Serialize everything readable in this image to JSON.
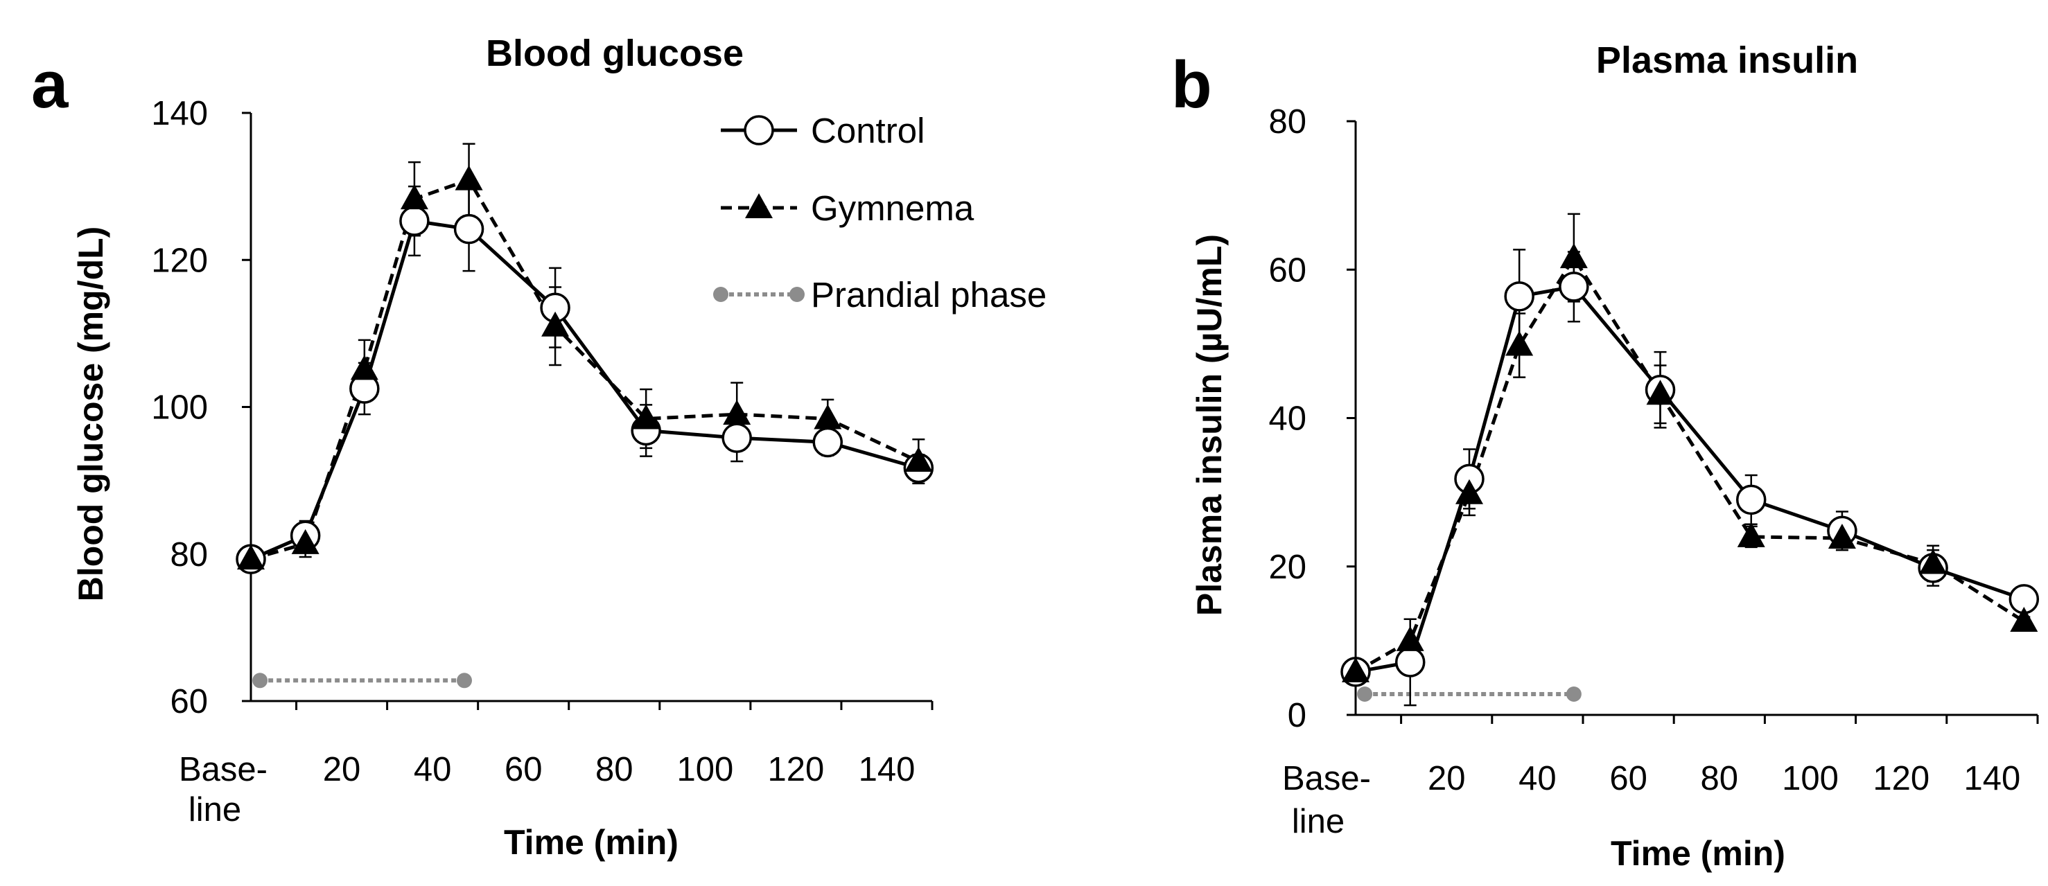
{
  "colors": {
    "control": "#000000",
    "gymnema": "#000000",
    "prandial": "#8c8c8c",
    "background": "#ffffff"
  },
  "legend": {
    "control": "Control",
    "gymnema": "Gymnema",
    "prandial": "Prandial phase"
  },
  "chart_data": [
    {
      "panel": "a",
      "type": "line",
      "title": "Blood glucose",
      "xlabel": "Time (min)",
      "ylabel": "Blood glucose (mg/dL)",
      "ylim": [
        60,
        140
      ],
      "yticks": [
        60,
        80,
        100,
        120,
        140
      ],
      "xlim": [
        0,
        150
      ],
      "xticks": [
        {
          "value": 0,
          "lines": [
            "Base-",
            "line"
          ]
        },
        {
          "value": 20,
          "lines": [
            "20"
          ]
        },
        {
          "value": 40,
          "lines": [
            "40"
          ]
        },
        {
          "value": 60,
          "lines": [
            "60"
          ]
        },
        {
          "value": 80,
          "lines": [
            "80"
          ]
        },
        {
          "value": 100,
          "lines": [
            "100"
          ]
        },
        {
          "value": 120,
          "lines": [
            "120"
          ]
        },
        {
          "value": 140,
          "lines": [
            "140"
          ]
        }
      ],
      "legend_position": "top-right",
      "series": [
        {
          "name": "Control",
          "key": "control",
          "marker": "open-circle",
          "line": "solid",
          "x": [
            0,
            12,
            25,
            36,
            48,
            67,
            87,
            107,
            127,
            147
          ],
          "y": [
            79.3,
            82.5,
            102.5,
            125.3,
            124.2,
            113.5,
            96.8,
            95.8,
            95.2,
            91.7
          ],
          "err": [
            0.7,
            2.0,
            3.5,
            4.7,
            5.7,
            5.4,
            3.5,
            3.2,
            1.8,
            1.8
          ]
        },
        {
          "name": "Gymnema",
          "key": "gymnema",
          "marker": "filled-triangle",
          "line": "dashed",
          "x": [
            0,
            12,
            25,
            36,
            48,
            67,
            87,
            107,
            127,
            147
          ],
          "y": [
            79.3,
            81.4,
            105.1,
            128.3,
            130.9,
            111.0,
            98.4,
            99.0,
            98.4,
            92.6
          ],
          "err": [
            0.7,
            1.8,
            4.0,
            5.0,
            4.9,
            5.3,
            4.0,
            4.3,
            2.6,
            3.0
          ]
        }
      ],
      "prandial_phase": {
        "x": [
          2,
          47
        ],
        "y": 62.8
      }
    },
    {
      "panel": "b",
      "type": "line",
      "title": "Plasma insulin",
      "xlabel": "Time (min)",
      "ylabel": "Plasma insulin (µU/mL)",
      "ylim": [
        0,
        80
      ],
      "yticks": [
        0,
        20,
        40,
        60,
        80
      ],
      "xlim": [
        0,
        150
      ],
      "xticks": [
        {
          "value": 0,
          "lines": [
            "Base-",
            "line"
          ]
        },
        {
          "value": 20,
          "lines": [
            "20"
          ]
        },
        {
          "value": 40,
          "lines": [
            "40"
          ]
        },
        {
          "value": 60,
          "lines": [
            "60"
          ]
        },
        {
          "value": 80,
          "lines": [
            "80"
          ]
        },
        {
          "value": 100,
          "lines": [
            "100"
          ]
        },
        {
          "value": 120,
          "lines": [
            "120"
          ]
        },
        {
          "value": 140,
          "lines": [
            "140"
          ]
        }
      ],
      "series": [
        {
          "name": "Control",
          "key": "control",
          "marker": "open-circle",
          "line": "solid",
          "x": [
            0,
            12,
            25,
            36,
            48,
            67,
            87,
            107,
            127,
            147
          ],
          "y": [
            5.8,
            7.1,
            31.8,
            56.4,
            57.7,
            43.8,
            29.0,
            24.8,
            19.8,
            15.6
          ],
          "err": [
            0.6,
            5.8,
            4.0,
            6.3,
            4.7,
            5.1,
            3.3,
            2.6,
            2.4,
            0.9
          ]
        },
        {
          "name": "Gymnema",
          "key": "gymnema",
          "marker": "filled-triangle",
          "line": "dashed",
          "x": [
            0,
            12,
            25,
            36,
            48,
            67,
            87,
            107,
            127,
            147
          ],
          "y": [
            5.8,
            10.0,
            29.8,
            49.8,
            61.6,
            43.2,
            24.0,
            23.8,
            20.4,
            12.6
          ],
          "err": [
            0.6,
            2.9,
            2.9,
            4.3,
            5.9,
            3.9,
            1.4,
            1.3,
            2.4,
            0.6
          ]
        }
      ],
      "prandial_phase": {
        "x": [
          2,
          48
        ],
        "y": 2.8
      }
    }
  ]
}
